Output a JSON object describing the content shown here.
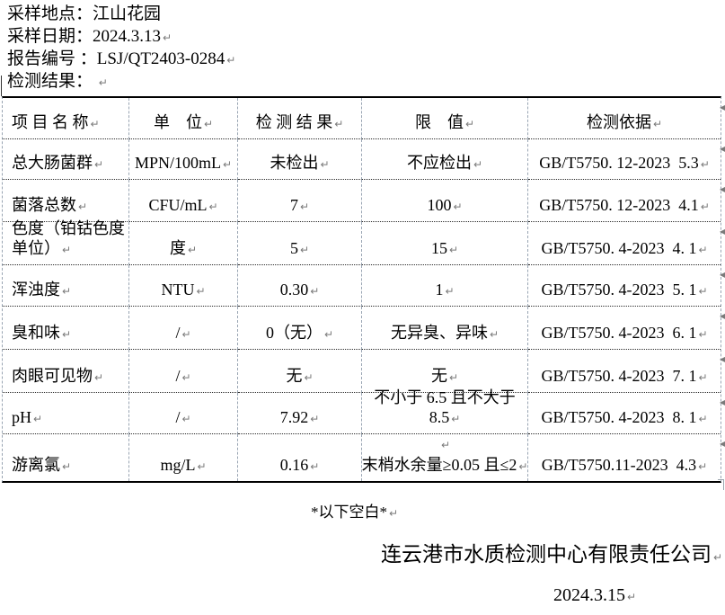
{
  "marks": {
    "paragraph": "↵",
    "row_end": "◀"
  },
  "colors": {
    "text": "#000000",
    "border_solid": "#000000",
    "border_dotted": "#2a2a2a",
    "border_dashed": "#99a5b3",
    "formatting_marks": "#7a7a7a"
  },
  "header": {
    "lines": [
      {
        "text": "采样地点：江山花园",
        "mark": false
      },
      {
        "text": "采样日期：2024.3.13",
        "mark": true
      },
      {
        "text": "报告编号 ：LSJ/QT2403-0284",
        "mark": true
      },
      {
        "text": "检测结果： ",
        "mark": true
      }
    ]
  },
  "table": {
    "columns": [
      "项 目 名 称",
      "单　位",
      "检 测 结 果",
      "限　值",
      "检测依据"
    ],
    "rows": [
      {
        "item": [
          "总大肠菌群"
        ],
        "unit": [
          "MPN/100mL"
        ],
        "result": [
          "未检出"
        ],
        "limit": [
          "不应检出"
        ],
        "basis": [
          "GB/T5750. 12-2023  5.3"
        ]
      },
      {
        "item": [
          "菌落总数"
        ],
        "unit": [
          "CFU/mL"
        ],
        "result": [
          "7"
        ],
        "limit": [
          "100"
        ],
        "basis": [
          "GB/T5750. 12-2023  4.1"
        ]
      },
      {
        "item": [
          "色度（铂钴色度",
          "单位）"
        ],
        "unit": [
          "度"
        ],
        "result": [
          "5"
        ],
        "limit": [
          "15"
        ],
        "basis": [
          "GB/T5750. 4-2023  4. 1"
        ]
      },
      {
        "item": [
          "浑浊度"
        ],
        "unit": [
          "NTU"
        ],
        "result": [
          "0.30"
        ],
        "limit": [
          "1"
        ],
        "basis": [
          "GB/T5750. 4-2023  5. 1"
        ]
      },
      {
        "item": [
          "臭和味"
        ],
        "unit": [
          "/"
        ],
        "result": [
          "0（无）"
        ],
        "limit": [
          "无异臭、异味"
        ],
        "basis": [
          "GB/T5750. 4-2023  6. 1"
        ]
      },
      {
        "item": [
          "肉眼可见物"
        ],
        "unit": [
          "/"
        ],
        "result": [
          "无"
        ],
        "limit": [
          "无"
        ],
        "basis": [
          "GB/T5750. 4-2023  7. 1"
        ]
      },
      {
        "item": [
          "pH"
        ],
        "unit": [
          "/"
        ],
        "result": [
          "7.92"
        ],
        "limit": [
          "不小于 6.5 且不大于",
          "8.5"
        ],
        "basis": [
          "GB/T5750. 4-2023  8. 1"
        ]
      },
      {
        "item": [
          "游离氯"
        ],
        "unit": [
          "mg/L"
        ],
        "result": [
          "0.16"
        ],
        "limit": [
          "",
          "末梢水余量≥0.05 且≤2"
        ],
        "basis": [
          "GB/T5750.11-2023  4.3"
        ]
      }
    ]
  },
  "footer": {
    "blank_note": "*以下空白*",
    "company": "连云港市水质检测中心有限责任公司",
    "date": "2024.3.15"
  }
}
